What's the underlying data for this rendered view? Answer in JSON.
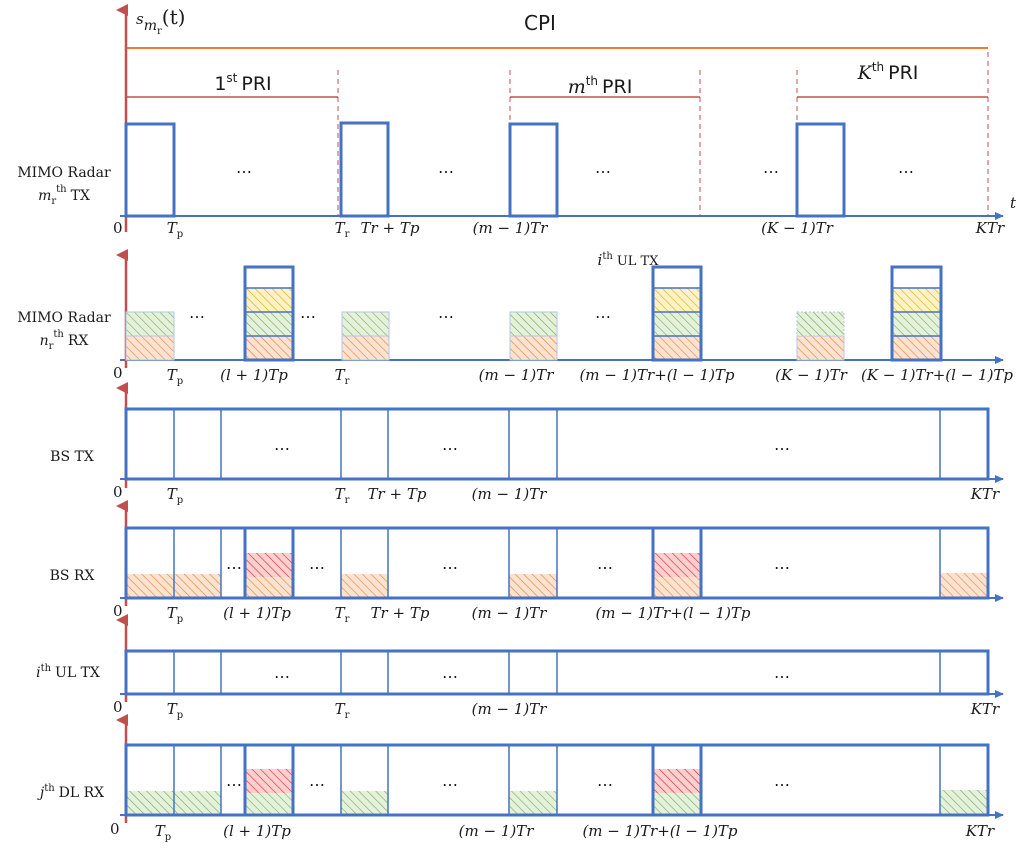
{
  "colors": {
    "axis": "#4472c4",
    "box": "#4472c4",
    "arrow": "#c0504d",
    "cpi": "#ed7d31",
    "pri": "#c0504d",
    "hatch_orange": "#f4b183",
    "hatch_green": "#a9d18e",
    "hatch_yellow": "#ffd966",
    "hatch_red": "#ff6b6b"
  },
  "header": {
    "signal_symbol": "s",
    "signal_sub_m": "m",
    "signal_sub_r": "r",
    "signal_arg": "(t)",
    "cpi_label": "CPI",
    "pri_first": {
      "num": "1",
      "sup": "st",
      "word": "PRI"
    },
    "pri_m": {
      "num": "m",
      "sup": "th",
      "word": "PRI"
    },
    "pri_k": {
      "num": "K",
      "sup": "th",
      "word": "PRI"
    },
    "time_symbol": "t"
  },
  "common": {
    "zero": "0",
    "ellipsis": "…",
    "Tp": {
      "base": "T",
      "sub": "p"
    },
    "Tr": {
      "base": "T",
      "sub": "r"
    },
    "Tr_plus_Tp": "Tr + Tp",
    "l_plus_1_Tp": "(l + 1)Tp",
    "m_minus_1_Tr": "(m − 1)Tr",
    "K_minus_1_Tr": "(K − 1)Tr",
    "KTr": "KTr",
    "m_combo": "(m − 1)Tr+(l − 1)Tp",
    "K_combo": "(K − 1)Tr+(l − 1)Tp"
  },
  "rows": [
    {
      "id": "radar-tx",
      "line1": "MIMO Radar",
      "line2_var": "m",
      "line2_sub": "r",
      "line2_sup": "th",
      "line2_rest": "TX"
    },
    {
      "id": "radar-rx",
      "line1": "MIMO Radar",
      "line2_var": "n",
      "line2_sub": "r",
      "line2_sup": "th",
      "line2_rest": "RX",
      "ul_tx_var": "i",
      "ul_tx_sup": "th",
      "ul_tx_rest": "UL TX"
    },
    {
      "id": "bs-tx",
      "line1": "BS TX"
    },
    {
      "id": "bs-rx",
      "line1": "BS RX"
    },
    {
      "id": "ul-tx",
      "line1_var": "i",
      "line1_sup": "th",
      "line1_rest": "UL TX"
    },
    {
      "id": "dl-rx",
      "line1_var": "j",
      "line1_sup": "th",
      "line1_rest": "DL RX"
    }
  ]
}
